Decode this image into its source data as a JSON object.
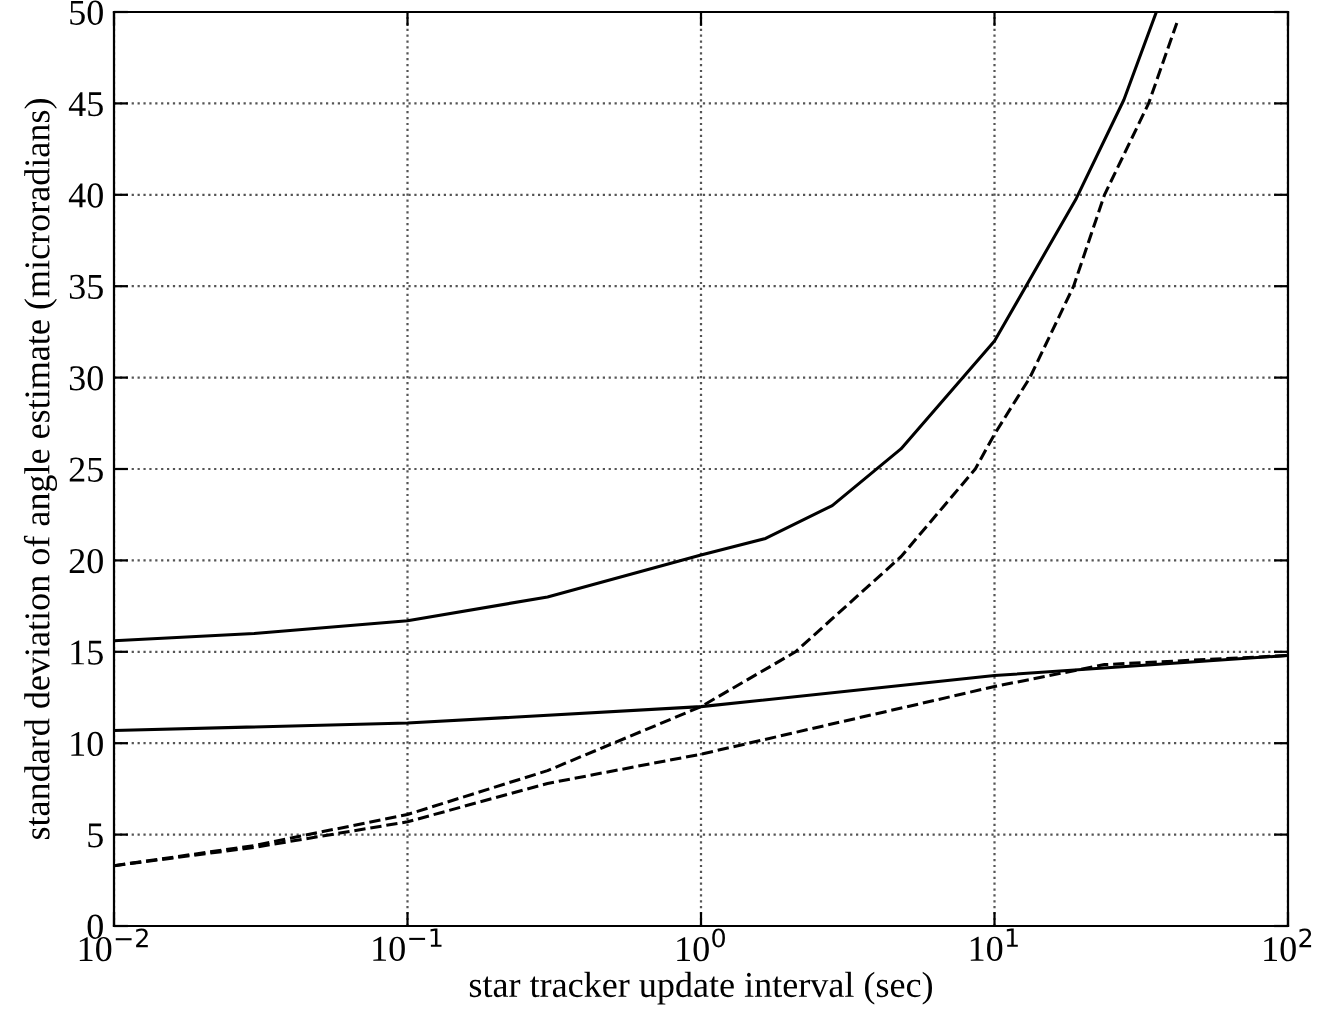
{
  "chart_data": {
    "type": "line",
    "xlabel": "star tracker update interval (sec)",
    "ylabel": "standard deviation of angle estimate (microradians)",
    "log": "x",
    "grid": true,
    "marker": "none",
    "xlim": [
      0.01,
      100
    ],
    "xticks": [
      {
        "value": 0.01,
        "label": "10$^{−2}$"
      },
      {
        "value": 0.1,
        "label": "10$^{−1}$"
      },
      {
        "value": 1,
        "label": "10$^{0}$"
      },
      {
        "value": 10,
        "label": "10$^{1}$"
      },
      {
        "value": 100,
        "label": "10$^{2}$"
      }
    ],
    "ylim": [
      0,
      50
    ],
    "yticks": [
      0,
      5,
      10,
      15,
      20,
      25,
      30,
      35,
      40,
      45,
      50
    ],
    "series": [
      {
        "color": "#000000",
        "line_style": "solid",
        "x": [
          0.01,
          0.03,
          0.1,
          0.3,
          1,
          1.66,
          2.8,
          4.8,
          10,
          19,
          27.6,
          35.6
        ],
        "values": [
          15.6,
          16.0,
          16.7,
          18.0,
          20.3,
          21.2,
          23.0,
          26.1,
          32.0,
          39.8,
          45.2,
          50.0
        ]
      },
      {
        "color": "#000000",
        "line_style": "dashed",
        "x": [
          0.01,
          0.03,
          0.1,
          0.3,
          1,
          2.1,
          4.8,
          8.6,
          10,
          13.2,
          18.6,
          23.7,
          33.5,
          41.8
        ],
        "values": [
          3.3,
          4.4,
          6.1,
          8.5,
          12.0,
          15.0,
          20.2,
          25.0,
          26.9,
          30.0,
          35.0,
          40.0,
          45.0,
          49.4
        ]
      },
      {
        "color": "#000000",
        "line_style": "solid",
        "x": [
          0.01,
          0.1,
          1,
          10,
          100
        ],
        "values": [
          10.7,
          11.1,
          12.0,
          13.7,
          14.8
        ]
      },
      {
        "color": "#000000",
        "line_style": "dashed",
        "x": [
          0.01,
          0.03,
          0.1,
          0.3,
          1,
          10,
          23.7,
          100
        ],
        "values": [
          3.3,
          4.3,
          5.7,
          7.8,
          9.4,
          13.1,
          14.3,
          14.8
        ]
      }
    ]
  }
}
